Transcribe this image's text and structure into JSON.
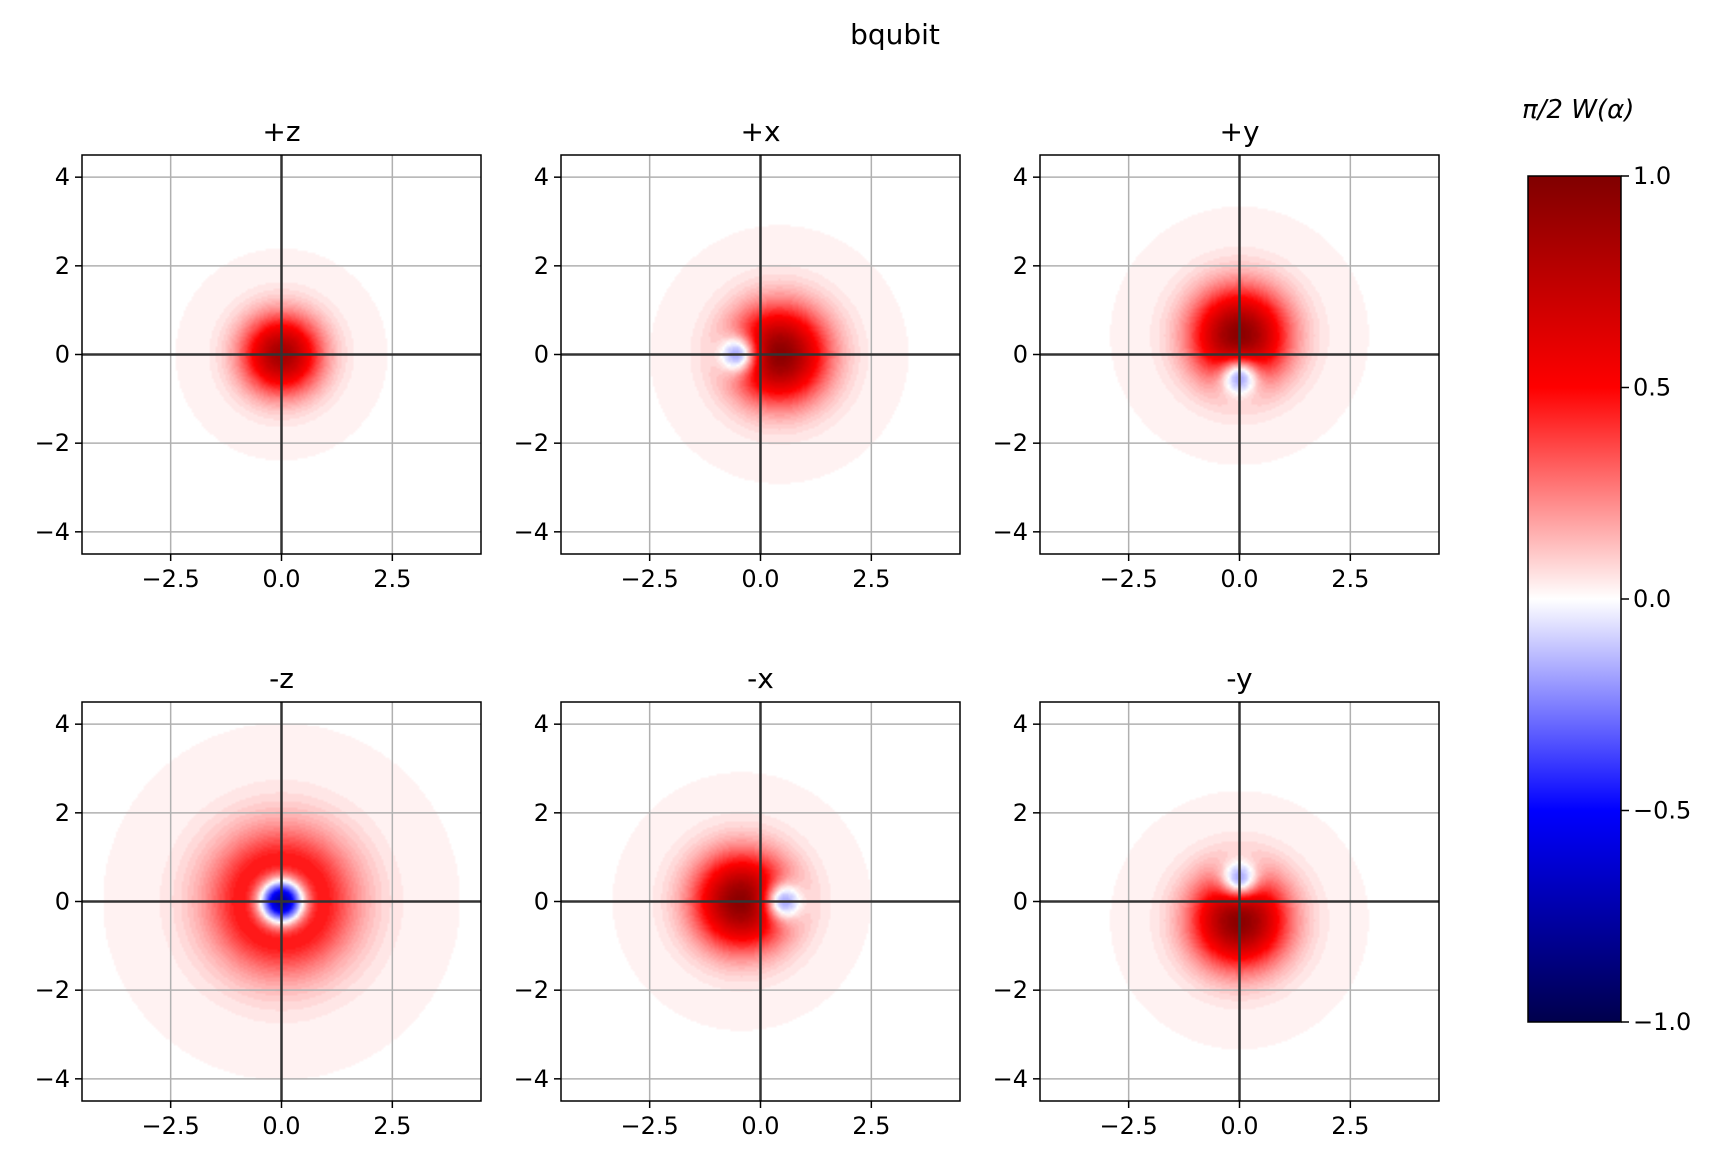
{
  "chart_data": {
    "type": "heatmap",
    "title": "bqubit",
    "colorbar": {
      "label": "π/2 W(α)",
      "ticks": [
        1.0,
        0.5,
        0.0,
        -0.5,
        -1.0
      ],
      "tick_labels": [
        "1.0",
        "0.5",
        "0.0",
        "−0.5",
        "−1.0"
      ],
      "range": [
        -1.0,
        1.0
      ],
      "colormap": "seismic",
      "colors": {
        "max": "#800000",
        "upper": "#ff0000",
        "zero": "#ffffff",
        "lower": "#0000ff",
        "min": "#00004c"
      }
    },
    "axes": {
      "xlim": [
        -4.5,
        4.5
      ],
      "ylim": [
        -4.5,
        4.5
      ],
      "xticks": [
        -2.5,
        0.0,
        2.5
      ],
      "xtick_labels": [
        "−2.5",
        "0.0",
        "2.5"
      ],
      "yticks": [
        4,
        2,
        0,
        -2,
        -4
      ],
      "ytick_labels": [
        "4",
        "2",
        "0",
        "−2",
        "−4"
      ],
      "grid": true,
      "grid_color": "#b0b0b0",
      "axis_line_color": "#333333"
    },
    "panels": [
      {
        "title": "+z",
        "blobs": [
          {
            "x": 0.0,
            "y": 0.0,
            "sigma": 0.62,
            "amp": 0.85
          }
        ]
      },
      {
        "title": "+x",
        "blobs": [
          {
            "x": 0.42,
            "y": 0.0,
            "sigma": 0.75,
            "amp": 0.95
          },
          {
            "x": -0.45,
            "y": 0.0,
            "sigma": 0.3,
            "amp": -0.62
          }
        ]
      },
      {
        "title": "+y",
        "blobs": [
          {
            "x": 0.0,
            "y": 0.42,
            "sigma": 0.75,
            "amp": 0.95
          },
          {
            "x": 0.0,
            "y": -0.45,
            "sigma": 0.3,
            "amp": -0.62
          }
        ]
      },
      {
        "title": "-z",
        "blobs": [
          {
            "x": 0.0,
            "y": 0.0,
            "sigma": 1.05,
            "amp": 0.78
          },
          {
            "x": 0.0,
            "y": 0.0,
            "sigma": 0.38,
            "amp": -1.55
          }
        ]
      },
      {
        "title": "-x",
        "blobs": [
          {
            "x": -0.42,
            "y": 0.0,
            "sigma": 0.75,
            "amp": 0.95
          },
          {
            "x": 0.45,
            "y": 0.0,
            "sigma": 0.3,
            "amp": -0.62
          }
        ]
      },
      {
        "title": "-y",
        "blobs": [
          {
            "x": 0.0,
            "y": -0.42,
            "sigma": 0.75,
            "amp": 0.95
          },
          {
            "x": 0.0,
            "y": 0.45,
            "sigma": 0.3,
            "amp": -0.62
          }
        ]
      }
    ]
  }
}
